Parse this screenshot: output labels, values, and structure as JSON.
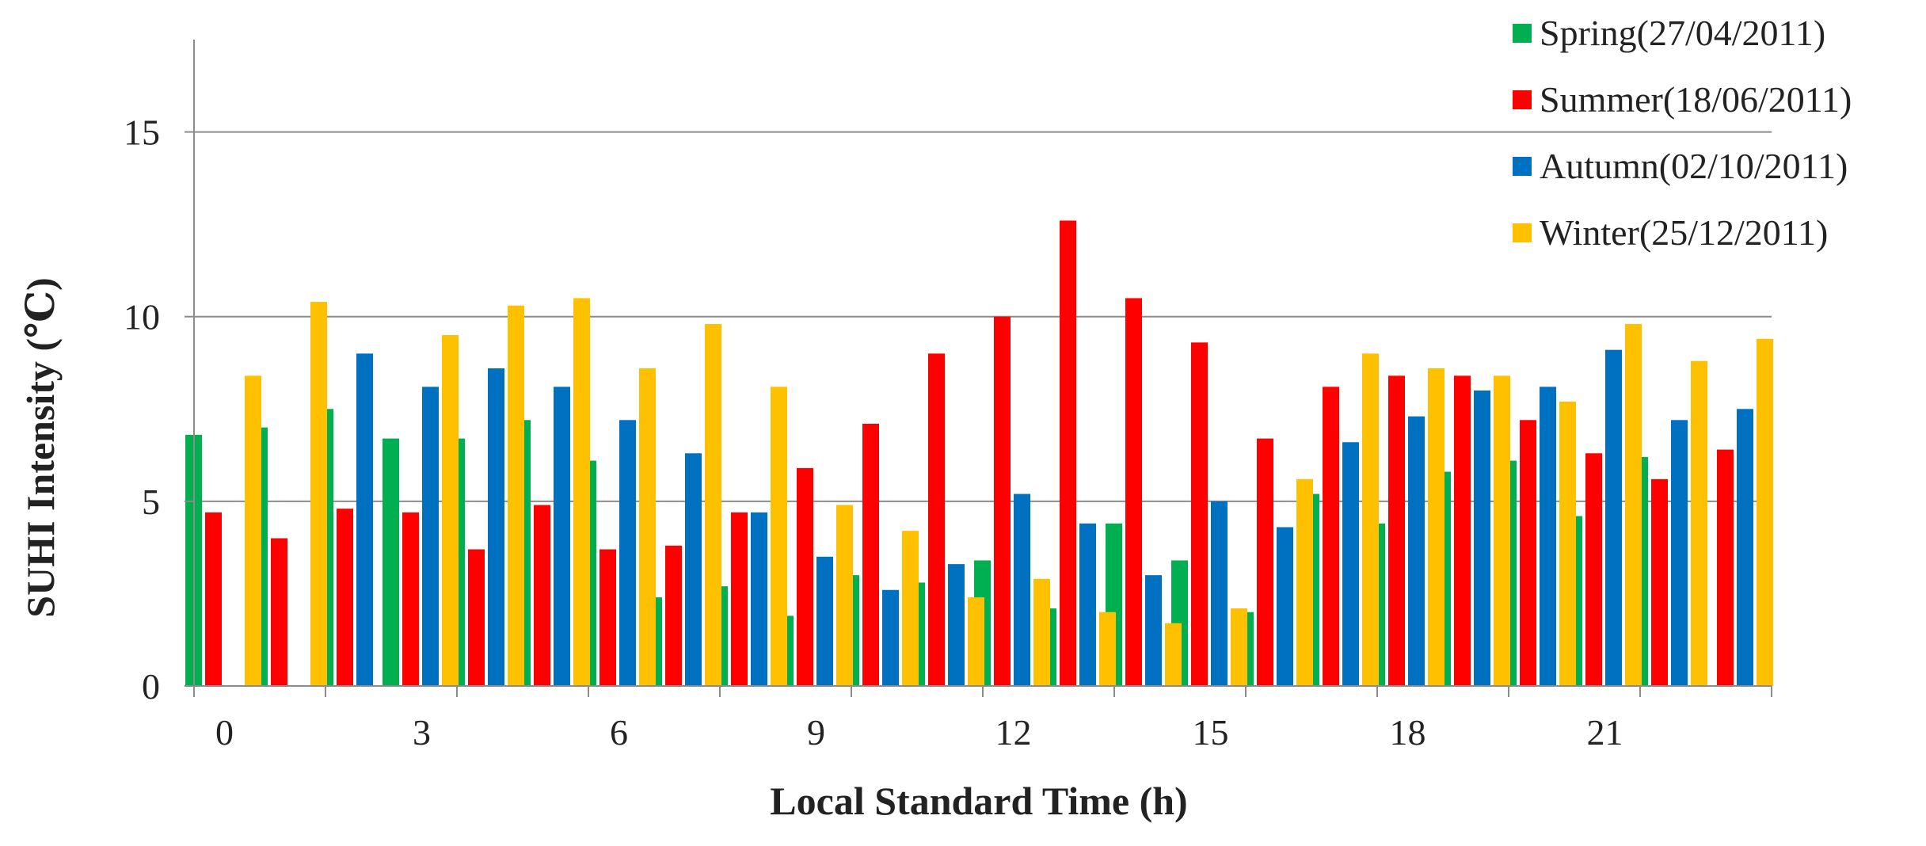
{
  "chart_data": {
    "type": "bar",
    "title": "",
    "xlabel": "Local Standard Time (h)",
    "ylabel": "SUHI Intensity  (℃)",
    "ylim": [
      0,
      17.5
    ],
    "yticks": [
      0,
      5,
      10,
      15
    ],
    "xticks": [
      0,
      3,
      6,
      9,
      12,
      15,
      18,
      21
    ],
    "grid": true,
    "legend_position": "top-right",
    "x": [
      0,
      1,
      2,
      3,
      4,
      5,
      6,
      7,
      8,
      9,
      10,
      11,
      12,
      13,
      14,
      15,
      16,
      17,
      18,
      19,
      20,
      21,
      22,
      23
    ],
    "series": [
      {
        "name": "Spring(27/04/2011)",
        "color": "#00b050",
        "values": [
          6.8,
          7.0,
          7.5,
          6.7,
          6.7,
          7.2,
          6.1,
          2.4,
          2.7,
          1.9,
          3.0,
          2.8,
          3.4,
          2.1,
          4.4,
          3.4,
          2.0,
          5.2,
          4.4,
          5.8,
          6.1,
          4.6,
          6.2,
          0
        ]
      },
      {
        "name": "Summer(18/06/2011)",
        "color": "#ff0000",
        "values": [
          4.7,
          4.0,
          4.8,
          4.7,
          3.7,
          4.9,
          3.7,
          3.8,
          4.7,
          5.9,
          7.1,
          9.0,
          10.0,
          12.6,
          10.5,
          9.3,
          6.7,
          8.1,
          8.4,
          8.4,
          7.2,
          6.3,
          5.6,
          6.4
        ]
      },
      {
        "name": "Autumn(02/10/2011)",
        "color": "#0070c0",
        "values": [
          0,
          0,
          9.0,
          8.1,
          8.6,
          8.1,
          7.2,
          6.3,
          4.7,
          3.5,
          2.6,
          3.3,
          5.2,
          4.4,
          3.0,
          5.0,
          4.3,
          6.6,
          7.3,
          8.0,
          8.1,
          9.1,
          7.2,
          7.5
        ]
      },
      {
        "name": "Winter(25/12/2011)",
        "color": "#ffc000",
        "values": [
          8.4,
          10.4,
          0,
          9.5,
          10.3,
          10.5,
          8.6,
          9.8,
          8.1,
          4.9,
          4.2,
          2.4,
          2.9,
          2.0,
          1.7,
          2.1,
          5.6,
          9.0,
          8.6,
          8.4,
          7.7,
          9.8,
          8.8,
          9.4
        ]
      }
    ]
  }
}
